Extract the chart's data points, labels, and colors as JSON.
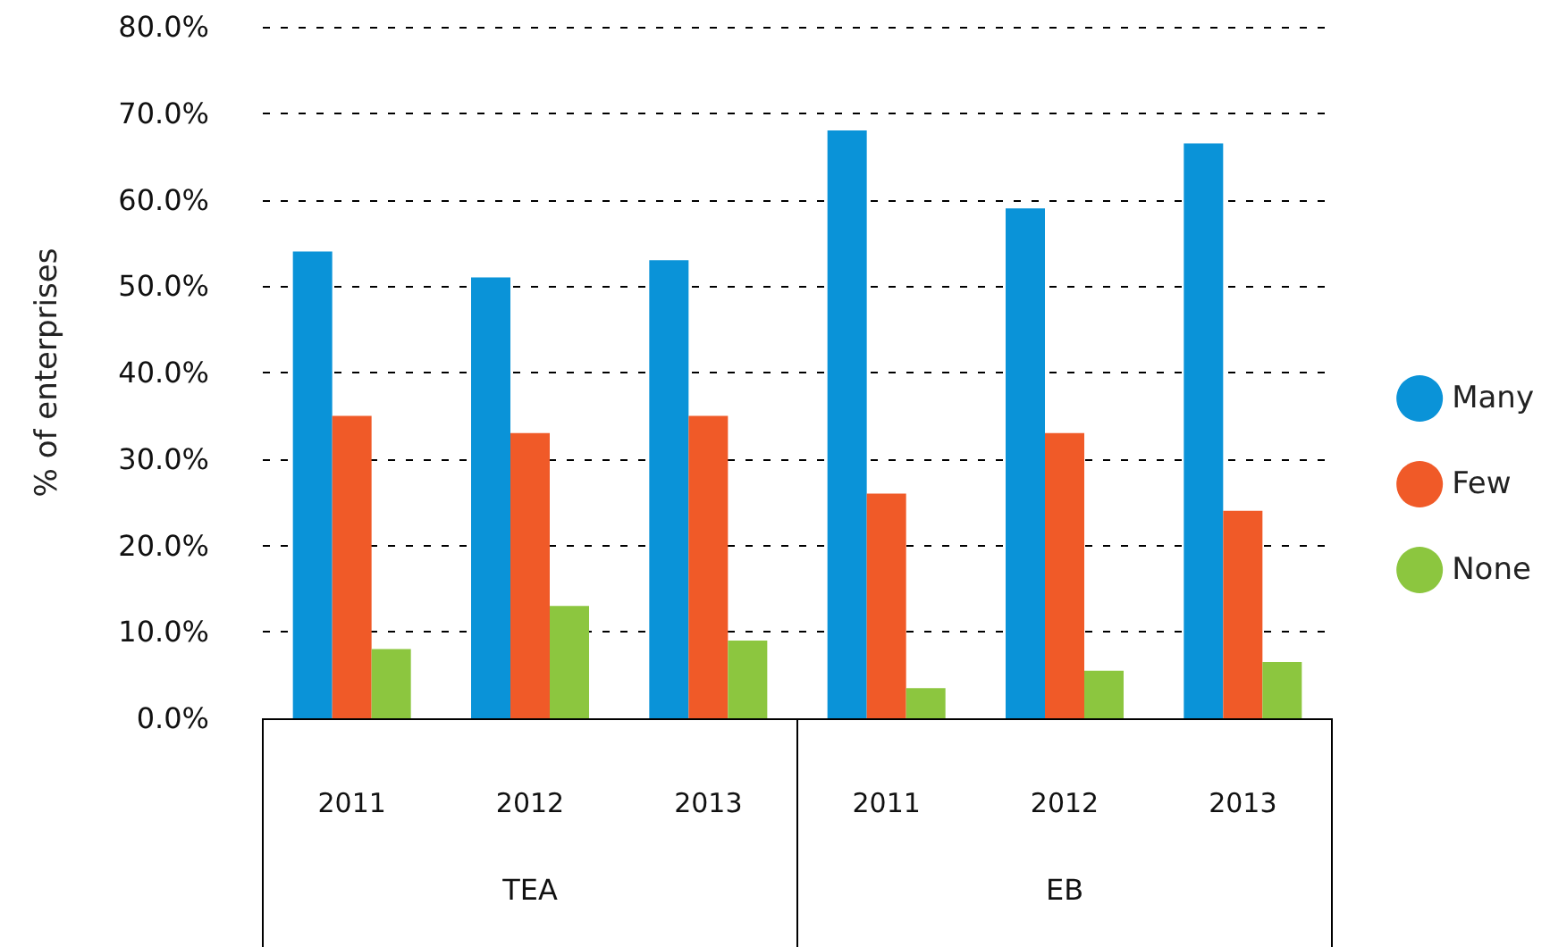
{
  "chart_data": {
    "type": "bar",
    "ylabel": "% of enterprises",
    "categories": [
      "2011",
      "2012",
      "2013",
      "2011",
      "2012",
      "2013"
    ],
    "annotations": [
      "TEA",
      "EB"
    ],
    "series": [
      {
        "name": "Many",
        "color": "#0a93d8",
        "values": [
          54,
          51,
          53,
          68,
          59,
          66.5
        ]
      },
      {
        "name": "Few",
        "color": "#f05a28",
        "values": [
          35,
          33,
          35,
          26,
          33,
          24
        ]
      },
      {
        "name": "None",
        "color": "#8cc63f",
        "values": [
          8,
          13,
          9,
          3.5,
          5.5,
          6.5
        ]
      }
    ],
    "ylim": [
      0,
      80
    ],
    "yticks": [
      {
        "value": 0,
        "label": "0.0%"
      },
      {
        "value": 10,
        "label": "10.0%"
      },
      {
        "value": 20,
        "label": "20.0%"
      },
      {
        "value": 30,
        "label": "30.0%"
      },
      {
        "value": 40,
        "label": "40.0%"
      },
      {
        "value": 50,
        "label": "50.0%"
      },
      {
        "value": 60,
        "label": "60.0%"
      },
      {
        "value": 70,
        "label": "70.0%"
      },
      {
        "value": 80,
        "label": "80.0%"
      }
    ],
    "grid": "y",
    "legend": "right"
  }
}
